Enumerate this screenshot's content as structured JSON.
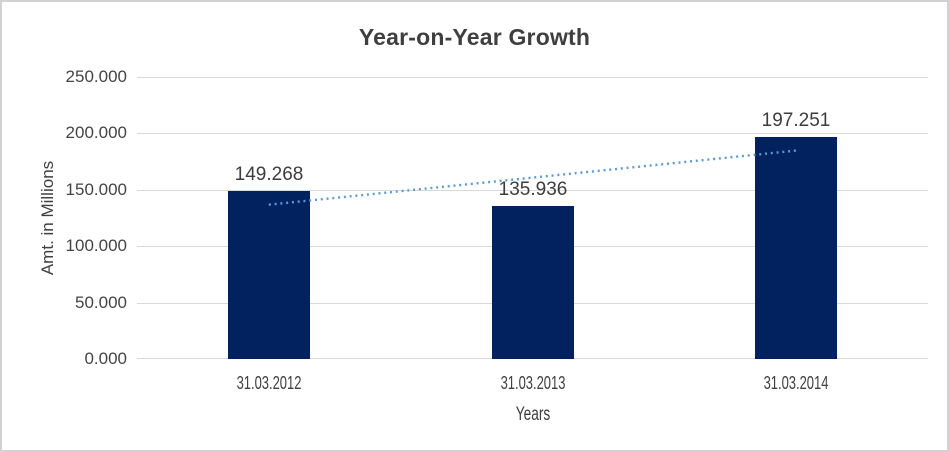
{
  "chart_data": {
    "type": "bar",
    "title": "Year-on-Year Growth",
    "xlabel": "Years",
    "ylabel": "Amt. in Millions",
    "categories": [
      "31.03.2012",
      "31.03.2013",
      "31.03.2014"
    ],
    "values": [
      149.268,
      135.936,
      197.251
    ],
    "value_labels": [
      "149.268",
      "135.936",
      "197.251"
    ],
    "ylim": [
      0,
      250
    ],
    "ytick_values": [
      0,
      50,
      100,
      150,
      200,
      250
    ],
    "ytick_labels": [
      "0.000",
      "50.000",
      "100.000",
      "150.000",
      "200.000",
      "250.000"
    ],
    "grid": true,
    "legend": "none",
    "bar_color": "#02225f",
    "gridline_color": "#d9d9d9",
    "trendline": {
      "style": "dotted",
      "color": "#5b9bd5",
      "start_value": 136.8,
      "end_value": 184.8
    }
  }
}
